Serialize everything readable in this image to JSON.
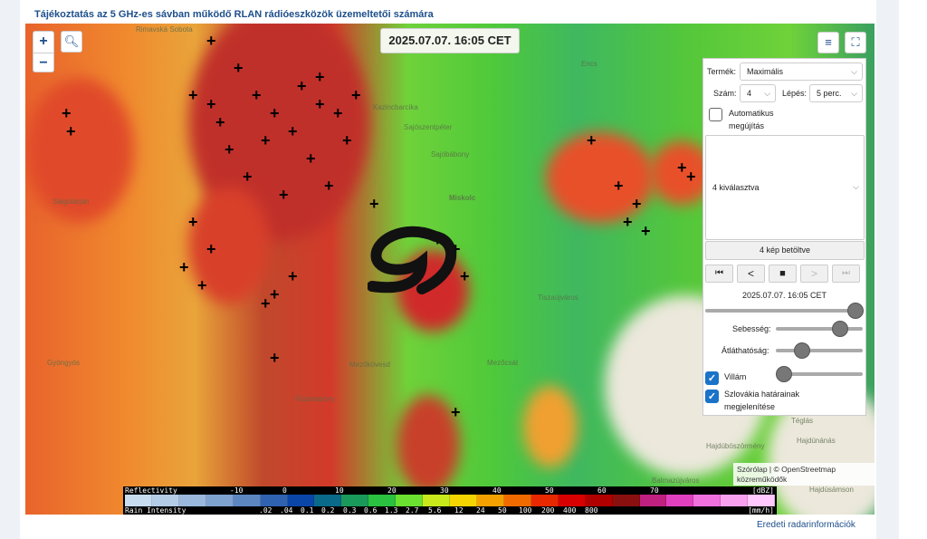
{
  "title": "Tájékoztatás az 5 GHz-es sávban működő RLAN rádióeszközök üzemeltetői számára",
  "map": {
    "timestamp": "2025.07.07. 16:05 CET",
    "zoom_in": "+",
    "zoom_out": "−",
    "cities": [
      "Rimavská Sobota",
      "Salgótarján",
      "Encs",
      "Kazincbarcika",
      "Sajószentpéter",
      "Sajóbábony",
      "Miskolc",
      "Tiszaújváros",
      "Mezőkövesd",
      "Füzesabony",
      "Gyöngyös",
      "Hajdúböszörmény",
      "Balmazújváros",
      "Hajdúsámson",
      "Téglás",
      "Hajdúnánás",
      "Mezőcsát"
    ]
  },
  "panel": {
    "product_label": "Termék:",
    "product_value": "Maximális",
    "count_label": "Szám:",
    "count_value": "4",
    "step_label": "Lépés:",
    "step_value": "5 perc.",
    "auto_refresh": "Automatikus megújítás",
    "auto_refresh_checked": false,
    "multiselect_value": "4 kiválasztva",
    "loaded": "4 kép betöltve",
    "frame_time": "2025.07.07. 16:05 CET",
    "frame_position": 1.0,
    "speed_label": "Sebesség:",
    "speed_value": 0.8,
    "opacity_label": "Átláthatóság:",
    "opacity_value": 0.25,
    "lightning_label": "Villám",
    "lightning_checked": true,
    "lightning_value": 0.0,
    "border_label": "Szlovákia határainak megjelenítése",
    "border_checked": true
  },
  "legend": {
    "reflectivity_label": "Reflectivity",
    "reflectivity_unit": "[dBZ]",
    "reflectivity_ticks": [
      "-10",
      "0",
      "10",
      "20",
      "30",
      "40",
      "50",
      "60",
      "70"
    ],
    "rain_label": "Rain Intensity",
    "rain_unit": "[mm/h]",
    "rain_ticks": [
      ".02",
      ".04",
      "0.1",
      "0.2",
      "0.3",
      "0.6",
      "1.3",
      "2.7",
      "5.6",
      "12",
      "24",
      "50",
      "100",
      "200",
      "400",
      "800"
    ],
    "colors": [
      "#c8dcf0",
      "#b4cce6",
      "#9ab8dc",
      "#7ea2d0",
      "#5c86c0",
      "#2f62b0",
      "#0a46a8",
      "#0a6a8a",
      "#1a9a5a",
      "#2ac040",
      "#6ce030",
      "#c8e81c",
      "#f4d400",
      "#f4a000",
      "#f06a00",
      "#e82800",
      "#d80000",
      "#b00000",
      "#8a1010",
      "#c02080",
      "#e040c0",
      "#f070e0",
      "#f8a0f0",
      "#ffc8ff"
    ]
  },
  "attribution": "Szórólap | © OpenStreetmap közreműködők",
  "footer_link": "Eredeti radarinformációk"
}
